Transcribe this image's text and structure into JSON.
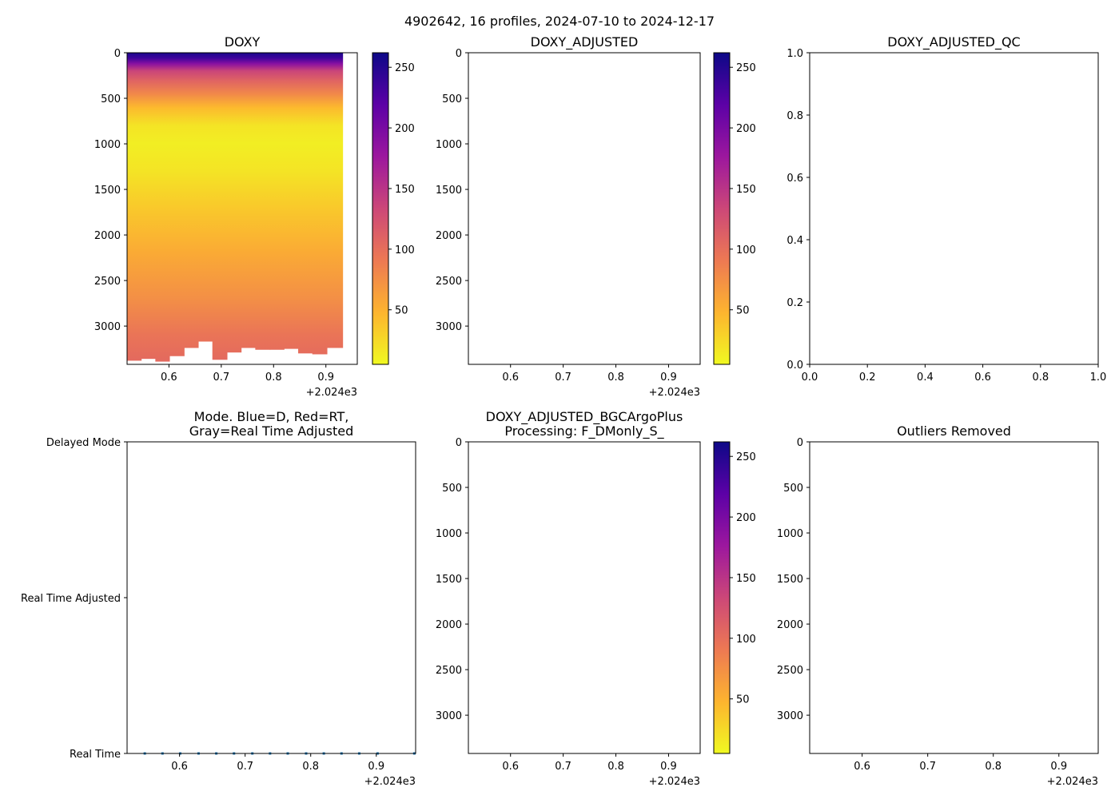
{
  "figure": {
    "suptitle": "4902642, 16 profiles, 2024-07-10 to 2024-12-17"
  },
  "colors": {
    "cmap": [
      "#f0f921",
      "#fdb42f",
      "#ed7953",
      "#cc4778",
      "#9c179e",
      "#5c01a6",
      "#0d0887"
    ],
    "mode_marker": "#1f77b4",
    "axis": "#000000"
  },
  "chart_data": [
    {
      "id": "doxy",
      "type": "heatmap",
      "title": "DOXY",
      "x_offset_label": "+2.024e3",
      "x_ticks": [
        "0.6",
        "0.7",
        "0.8",
        "0.9"
      ],
      "x_tick_values": [
        0.6,
        0.7,
        0.8,
        0.9
      ],
      "xlim": [
        0.52,
        0.96
      ],
      "y_ticks": [
        "0",
        "500",
        "1000",
        "1500",
        "2000",
        "2500",
        "3000"
      ],
      "y_tick_values": [
        0,
        500,
        1000,
        1500,
        2000,
        2500,
        3000
      ],
      "ylim": [
        3420,
        0
      ],
      "colorbar": {
        "ticks": [
          "50",
          "100",
          "150",
          "200",
          "250"
        ],
        "tick_values": [
          50,
          100,
          150,
          200,
          250
        ],
        "range": [
          5,
          262
        ]
      },
      "profiles": [
        {
          "x0": 0.52,
          "x1": 0.547,
          "max_depth": 3380
        },
        {
          "x0": 0.547,
          "x1": 0.574,
          "max_depth": 3360
        },
        {
          "x0": 0.574,
          "x1": 0.601,
          "max_depth": 3390
        },
        {
          "x0": 0.601,
          "x1": 0.629,
          "max_depth": 3330
        },
        {
          "x0": 0.629,
          "x1": 0.656,
          "max_depth": 3240
        },
        {
          "x0": 0.656,
          "x1": 0.683,
          "max_depth": 3170
        },
        {
          "x0": 0.683,
          "x1": 0.711,
          "max_depth": 3370
        },
        {
          "x0": 0.711,
          "x1": 0.738,
          "max_depth": 3290
        },
        {
          "x0": 0.738,
          "x1": 0.765,
          "max_depth": 3240
        },
        {
          "x0": 0.765,
          "x1": 0.793,
          "max_depth": 3260
        },
        {
          "x0": 0.793,
          "x1": 0.82,
          "max_depth": 3260
        },
        {
          "x0": 0.82,
          "x1": 0.847,
          "max_depth": 3250
        },
        {
          "x0": 0.847,
          "x1": 0.874,
          "max_depth": 3300
        },
        {
          "x0": 0.874,
          "x1": 0.902,
          "max_depth": 3310
        },
        {
          "x0": 0.902,
          "x1": 0.932,
          "max_depth": 3240
        }
      ],
      "depth_profile": [
        {
          "depth": 0,
          "value": 255
        },
        {
          "depth": 60,
          "value": 235
        },
        {
          "depth": 120,
          "value": 190
        },
        {
          "depth": 200,
          "value": 135
        },
        {
          "depth": 300,
          "value": 110
        },
        {
          "depth": 450,
          "value": 80
        },
        {
          "depth": 600,
          "value": 45
        },
        {
          "depth": 800,
          "value": 18
        },
        {
          "depth": 1000,
          "value": 12
        },
        {
          "depth": 1300,
          "value": 18
        },
        {
          "depth": 1700,
          "value": 35
        },
        {
          "depth": 2200,
          "value": 55
        },
        {
          "depth": 2700,
          "value": 75
        },
        {
          "depth": 3100,
          "value": 95
        },
        {
          "depth": 3420,
          "value": 105
        }
      ]
    },
    {
      "id": "doxy_adjusted",
      "type": "heatmap",
      "title": "DOXY_ADJUSTED",
      "x_offset_label": "+2.024e3",
      "x_ticks": [
        "0.6",
        "0.7",
        "0.8",
        "0.9"
      ],
      "x_tick_values": [
        0.6,
        0.7,
        0.8,
        0.9
      ],
      "xlim": [
        0.52,
        0.96
      ],
      "y_ticks": [
        "0",
        "500",
        "1000",
        "1500",
        "2000",
        "2500",
        "3000"
      ],
      "y_tick_values": [
        0,
        500,
        1000,
        1500,
        2000,
        2500,
        3000
      ],
      "ylim": [
        3420,
        0
      ],
      "colorbar": {
        "ticks": [
          "50",
          "100",
          "150",
          "200",
          "250"
        ],
        "tick_values": [
          50,
          100,
          150,
          200,
          250
        ],
        "range": [
          5,
          262
        ]
      }
    },
    {
      "id": "doxy_adjusted_qc",
      "type": "scatter",
      "title": "DOXY_ADJUSTED_QC",
      "x_ticks": [
        "0.0",
        "0.2",
        "0.4",
        "0.6",
        "0.8",
        "1.0"
      ],
      "x_tick_values": [
        0,
        0.2,
        0.4,
        0.6,
        0.8,
        1.0
      ],
      "xlim": [
        0,
        1
      ],
      "y_ticks": [
        "0.0",
        "0.2",
        "0.4",
        "0.6",
        "0.8",
        "1.0"
      ],
      "y_tick_values": [
        0,
        0.2,
        0.4,
        0.6,
        0.8,
        1.0
      ],
      "ylim": [
        0,
        1
      ]
    },
    {
      "id": "mode",
      "type": "scatter",
      "title_lines": [
        "Mode. Blue=D, Red=RT,",
        "Gray=Real Time Adjusted"
      ],
      "x_offset_label": "+2.024e3",
      "x_ticks": [
        "0.6",
        "0.7",
        "0.8",
        "0.9"
      ],
      "x_tick_values": [
        0.6,
        0.7,
        0.8,
        0.9
      ],
      "xlim": [
        0.52,
        0.96
      ],
      "y_ticks": [
        "Delayed Mode",
        "Real Time Adjusted",
        "Real Time"
      ],
      "y_tick_values": [
        2,
        1,
        0
      ],
      "ylim": [
        0,
        2
      ],
      "points": [
        {
          "x": 0.547,
          "y": 0
        },
        {
          "x": 0.574,
          "y": 0
        },
        {
          "x": 0.601,
          "y": 0
        },
        {
          "x": 0.629,
          "y": 0
        },
        {
          "x": 0.656,
          "y": 0
        },
        {
          "x": 0.683,
          "y": 0
        },
        {
          "x": 0.711,
          "y": 0
        },
        {
          "x": 0.738,
          "y": 0
        },
        {
          "x": 0.765,
          "y": 0
        },
        {
          "x": 0.793,
          "y": 0
        },
        {
          "x": 0.82,
          "y": 0
        },
        {
          "x": 0.847,
          "y": 0
        },
        {
          "x": 0.874,
          "y": 0
        },
        {
          "x": 0.902,
          "y": 0
        },
        {
          "x": 0.958,
          "y": 0
        }
      ]
    },
    {
      "id": "doxy_bgc",
      "type": "heatmap",
      "title_lines": [
        "DOXY_ADJUSTED_BGCArgoPlus",
        "Processing: F_DMonly_S_"
      ],
      "x_offset_label": "+2.024e3",
      "x_ticks": [
        "0.6",
        "0.7",
        "0.8",
        "0.9"
      ],
      "x_tick_values": [
        0.6,
        0.7,
        0.8,
        0.9
      ],
      "xlim": [
        0.52,
        0.96
      ],
      "y_ticks": [
        "0",
        "500",
        "1000",
        "1500",
        "2000",
        "2500",
        "3000"
      ],
      "y_tick_values": [
        0,
        500,
        1000,
        1500,
        2000,
        2500,
        3000
      ],
      "ylim": [
        3420,
        0
      ],
      "colorbar": {
        "ticks": [
          "50",
          "100",
          "150",
          "200",
          "250"
        ],
        "tick_values": [
          50,
          100,
          150,
          200,
          250
        ],
        "range": [
          5,
          262
        ]
      }
    },
    {
      "id": "outliers",
      "type": "heatmap",
      "title": "Outliers Removed",
      "x_offset_label": "+2.024e3",
      "x_ticks": [
        "0.6",
        "0.7",
        "0.8",
        "0.9"
      ],
      "x_tick_values": [
        0.6,
        0.7,
        0.8,
        0.9
      ],
      "xlim": [
        0.52,
        0.96
      ],
      "y_ticks": [
        "0",
        "500",
        "1000",
        "1500",
        "2000",
        "2500",
        "3000"
      ],
      "y_tick_values": [
        0,
        500,
        1000,
        1500,
        2000,
        2500,
        3000
      ],
      "ylim": [
        3420,
        0
      ]
    }
  ]
}
